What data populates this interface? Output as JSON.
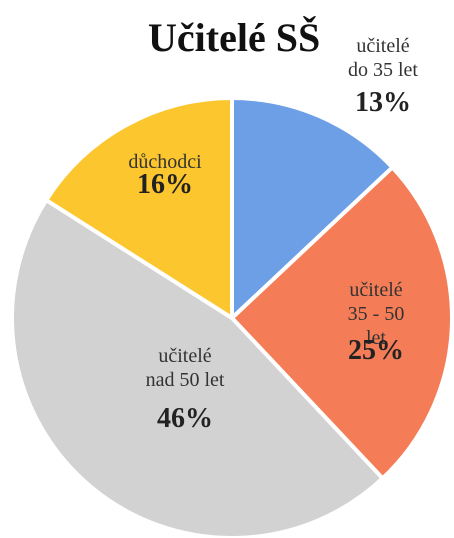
{
  "chart_data": {
    "type": "pie",
    "title": "Učitelé SŠ",
    "categories": [
      "učitelé\ndo 35 let",
      "učitelé\n35 - 50 let",
      "učitelé\nnad 50 let",
      "důchodci"
    ],
    "values": [
      13,
      25,
      46,
      16
    ],
    "value_labels": [
      "13%",
      "25%",
      "46%",
      "16%"
    ],
    "colors": [
      "#6d9fe6",
      "#f47d58",
      "#d2d2d2",
      "#fcc62e"
    ]
  }
}
